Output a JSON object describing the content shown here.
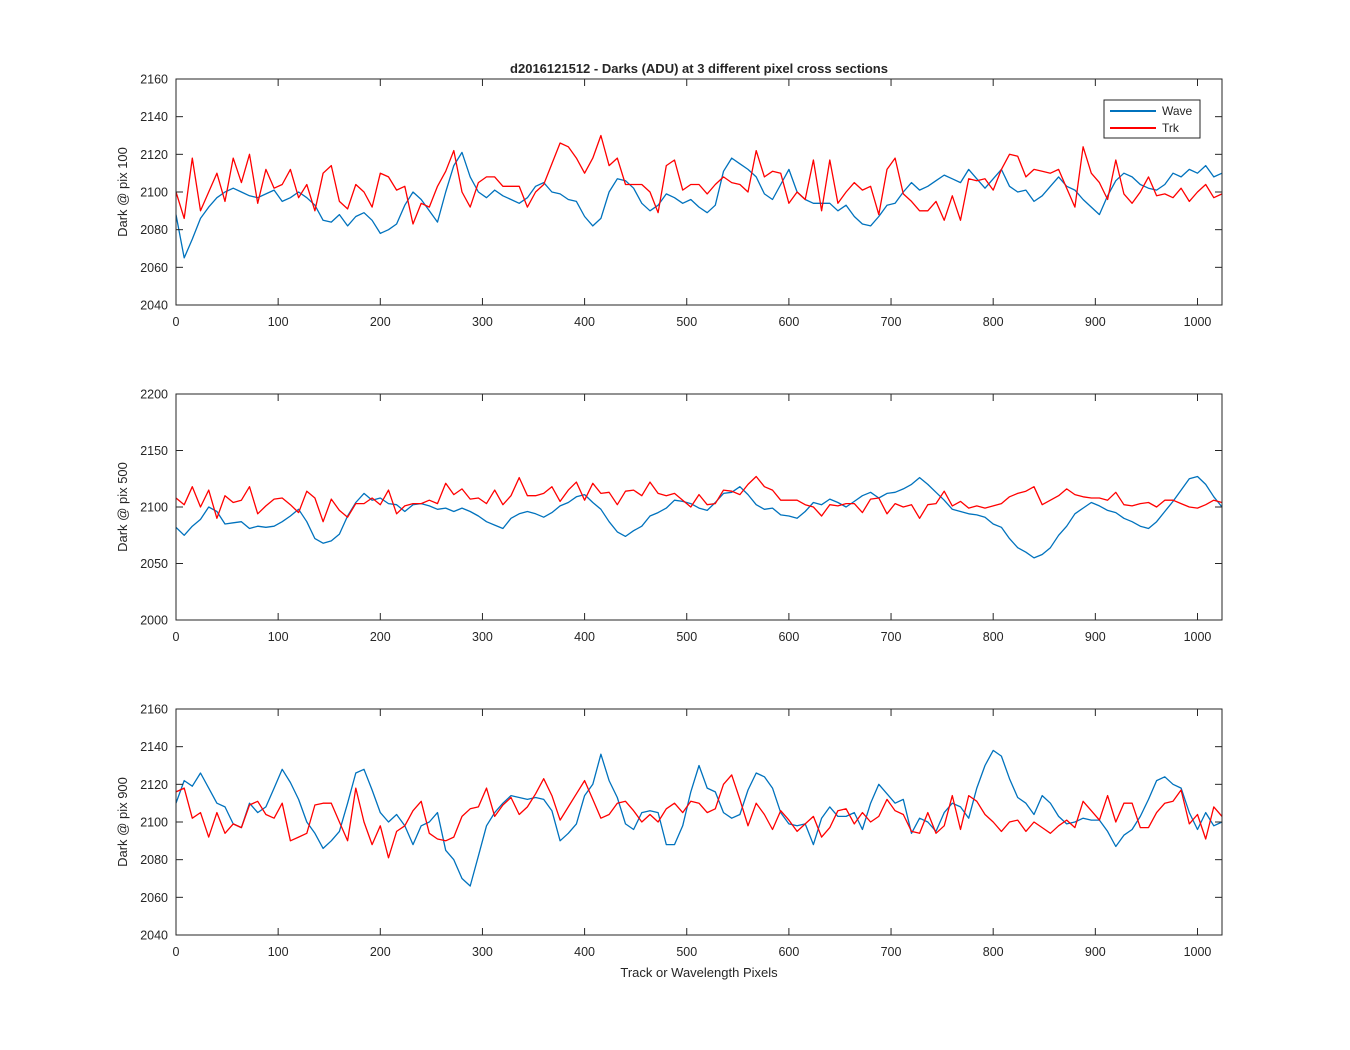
{
  "figure": {
    "title": "d2016121512 - Darks (ADU) at 3 different pixel cross sections",
    "xlabel": "Track or Wavelength Pixels"
  },
  "legend": {
    "placement": "top-right",
    "entries": [
      {
        "name": "Wave",
        "color": "#0072BD"
      },
      {
        "name": "Trk",
        "color": "#FF0000"
      }
    ]
  },
  "chart_data": [
    {
      "type": "line",
      "title": "d2016121512 - Darks (ADU) at 3 different pixel cross sections",
      "xlabel": "",
      "ylabel": "Dark @ pix 100",
      "xlim": [
        0,
        1024
      ],
      "ylim": [
        2040,
        2160
      ],
      "xticks": [
        0,
        100,
        200,
        300,
        400,
        500,
        600,
        700,
        800,
        900,
        1000
      ],
      "yticks": [
        2040,
        2060,
        2080,
        2100,
        2120,
        2140,
        2160
      ],
      "grid": false,
      "legend": "top-right",
      "x_step": 8,
      "series": [
        {
          "name": "Wave",
          "color": "#0072BD",
          "values": [
            2088,
            2065,
            2075,
            2086,
            2092,
            2097,
            2100,
            2102,
            2100,
            2098,
            2097,
            2099,
            2101,
            2095,
            2097,
            2100,
            2097,
            2093,
            2085,
            2084,
            2088,
            2082,
            2087,
            2089,
            2085,
            2078,
            2080,
            2083,
            2093,
            2100,
            2096,
            2090,
            2084,
            2100,
            2114,
            2121,
            2108,
            2100,
            2097,
            2101,
            2098,
            2096,
            2094,
            2097,
            2103,
            2105,
            2100,
            2099,
            2096,
            2095,
            2087,
            2082,
            2086,
            2100,
            2107,
            2106,
            2102,
            2094,
            2090,
            2093,
            2099,
            2097,
            2094,
            2096,
            2092,
            2089,
            2093,
            2111,
            2118,
            2115,
            2112,
            2108,
            2099,
            2096,
            2104,
            2112,
            2100,
            2096,
            2094,
            2094,
            2094,
            2090,
            2093,
            2087,
            2083,
            2082,
            2087,
            2093,
            2094,
            2100,
            2105,
            2101,
            2103,
            2106,
            2109,
            2107,
            2105,
            2112,
            2107,
            2102,
            2107,
            2112,
            2103,
            2100,
            2101,
            2095,
            2098,
            2103,
            2108,
            2103,
            2101,
            2096,
            2092,
            2088,
            2098,
            2106,
            2110,
            2108,
            2104,
            2102,
            2101,
            2104,
            2110,
            2108,
            2112,
            2110,
            2114,
            2108,
            2110
          ]
        },
        {
          "name": "Trk",
          "color": "#FF0000",
          "values": [
            2100,
            2086,
            2118,
            2090,
            2100,
            2110,
            2095,
            2118,
            2105,
            2120,
            2094,
            2112,
            2102,
            2104,
            2112,
            2097,
            2104,
            2090,
            2110,
            2114,
            2095,
            2091,
            2104,
            2100,
            2092,
            2110,
            2108,
            2101,
            2103,
            2083,
            2094,
            2092,
            2103,
            2111,
            2122,
            2100,
            2092,
            2105,
            2108,
            2108,
            2103,
            2103,
            2103,
            2092,
            2100,
            2104,
            2115,
            2126,
            2124,
            2118,
            2110,
            2118,
            2130,
            2114,
            2118,
            2104,
            2104,
            2104,
            2100,
            2089,
            2114,
            2117,
            2101,
            2104,
            2104,
            2099,
            2104,
            2108,
            2105,
            2104,
            2100,
            2122,
            2108,
            2111,
            2110,
            2094,
            2100,
            2096,
            2117,
            2090,
            2117,
            2094,
            2100,
            2105,
            2101,
            2103,
            2088,
            2112,
            2118,
            2099,
            2095,
            2090,
            2090,
            2095,
            2085,
            2098,
            2085,
            2107,
            2106,
            2107,
            2101,
            2112,
            2120,
            2119,
            2108,
            2112,
            2111,
            2110,
            2112,
            2102,
            2092,
            2124,
            2110,
            2105,
            2096,
            2117,
            2099,
            2094,
            2100,
            2108,
            2098,
            2099,
            2097,
            2102,
            2095,
            2100,
            2104,
            2097,
            2099
          ]
        }
      ]
    },
    {
      "type": "line",
      "xlabel": "",
      "ylabel": "Dark @ pix 500",
      "xlim": [
        0,
        1024
      ],
      "ylim": [
        2000,
        2200
      ],
      "xticks": [
        0,
        100,
        200,
        300,
        400,
        500,
        600,
        700,
        800,
        900,
        1000
      ],
      "yticks": [
        2000,
        2050,
        2100,
        2150,
        2200
      ],
      "grid": false,
      "series": [
        {
          "name": "Wave",
          "color": "#0072BD",
          "values": [
            2082,
            2075,
            2083,
            2089,
            2100,
            2096,
            2085,
            2086,
            2087,
            2081,
            2083,
            2082,
            2083,
            2087,
            2092,
            2098,
            2087,
            2072,
            2068,
            2070,
            2076,
            2092,
            2104,
            2112,
            2106,
            2108,
            2103,
            2102,
            2096,
            2102,
            2103,
            2101,
            2098,
            2099,
            2096,
            2099,
            2096,
            2092,
            2087,
            2084,
            2081,
            2090,
            2094,
            2096,
            2094,
            2091,
            2095,
            2101,
            2104,
            2109,
            2111,
            2104,
            2098,
            2087,
            2078,
            2074,
            2079,
            2083,
            2092,
            2095,
            2099,
            2106,
            2105,
            2103,
            2099,
            2097,
            2104,
            2112,
            2113,
            2118,
            2111,
            2102,
            2098,
            2099,
            2093,
            2092,
            2090,
            2096,
            2104,
            2102,
            2107,
            2104,
            2100,
            2105,
            2110,
            2113,
            2108,
            2112,
            2113,
            2116,
            2120,
            2126,
            2120,
            2113,
            2106,
            2098,
            2096,
            2094,
            2093,
            2091,
            2085,
            2082,
            2072,
            2064,
            2060,
            2055,
            2058,
            2064,
            2075,
            2083,
            2094,
            2099,
            2104,
            2101,
            2097,
            2095,
            2090,
            2087,
            2083,
            2081,
            2087,
            2096,
            2105,
            2115,
            2125,
            2127,
            2120,
            2109,
            2100
          ]
        },
        {
          "name": "Trk",
          "color": "#FF0000",
          "values": [
            2108,
            2102,
            2118,
            2100,
            2115,
            2090,
            2110,
            2104,
            2106,
            2118,
            2094,
            2101,
            2107,
            2108,
            2102,
            2095,
            2114,
            2108,
            2087,
            2107,
            2097,
            2091,
            2103,
            2103,
            2108,
            2102,
            2115,
            2094,
            2101,
            2103,
            2103,
            2106,
            2103,
            2121,
            2111,
            2116,
            2107,
            2108,
            2103,
            2115,
            2102,
            2110,
            2126,
            2110,
            2110,
            2112,
            2118,
            2105,
            2115,
            2122,
            2106,
            2121,
            2112,
            2113,
            2102,
            2114,
            2115,
            2110,
            2122,
            2112,
            2110,
            2112,
            2106,
            2100,
            2111,
            2102,
            2103,
            2115,
            2114,
            2111,
            2120,
            2127,
            2118,
            2115,
            2106,
            2106,
            2106,
            2102,
            2100,
            2092,
            2102,
            2101,
            2103,
            2103,
            2095,
            2107,
            2108,
            2094,
            2103,
            2100,
            2102,
            2090,
            2102,
            2103,
            2114,
            2101,
            2105,
            2099,
            2101,
            2099,
            2101,
            2103,
            2109,
            2112,
            2114,
            2118,
            2102,
            2106,
            2110,
            2116,
            2111,
            2109,
            2108,
            2108,
            2106,
            2113,
            2102,
            2101,
            2103,
            2104,
            2100,
            2106,
            2106,
            2103,
            2100,
            2099,
            2102,
            2106,
            2104
          ]
        }
      ]
    },
    {
      "type": "line",
      "xlabel": "Track or Wavelength Pixels",
      "ylabel": "Dark @ pix 900",
      "xlim": [
        0,
        1024
      ],
      "ylim": [
        2040,
        2160
      ],
      "xticks": [
        0,
        100,
        200,
        300,
        400,
        500,
        600,
        700,
        800,
        900,
        1000
      ],
      "yticks": [
        2040,
        2060,
        2080,
        2100,
        2120,
        2140,
        2160
      ],
      "grid": false,
      "series": [
        {
          "name": "Wave",
          "color": "#0072BD",
          "values": [
            2110,
            2122,
            2119,
            2126,
            2118,
            2110,
            2108,
            2099,
            2097,
            2110,
            2105,
            2108,
            2118,
            2128,
            2121,
            2112,
            2100,
            2094,
            2086,
            2090,
            2095,
            2110,
            2126,
            2128,
            2117,
            2105,
            2100,
            2104,
            2098,
            2088,
            2098,
            2100,
            2105,
            2085,
            2080,
            2070,
            2066,
            2082,
            2098,
            2105,
            2110,
            2114,
            2113,
            2112,
            2113,
            2112,
            2106,
            2090,
            2094,
            2099,
            2114,
            2120,
            2136,
            2122,
            2113,
            2099,
            2096,
            2105,
            2106,
            2105,
            2088,
            2088,
            2098,
            2116,
            2130,
            2118,
            2116,
            2105,
            2102,
            2104,
            2117,
            2126,
            2124,
            2118,
            2105,
            2099,
            2098,
            2099,
            2088,
            2102,
            2108,
            2103,
            2103,
            2105,
            2096,
            2110,
            2120,
            2115,
            2110,
            2112,
            2094,
            2102,
            2100,
            2095,
            2105,
            2110,
            2108,
            2102,
            2118,
            2130,
            2138,
            2135,
            2123,
            2113,
            2110,
            2104,
            2114,
            2110,
            2103,
            2099,
            2100,
            2102,
            2101,
            2101,
            2095,
            2087,
            2093,
            2096,
            2103,
            2112,
            2122,
            2124,
            2120,
            2118,
            2105,
            2096,
            2105,
            2098,
            2100
          ]
        },
        {
          "name": "Trk",
          "color": "#FF0000",
          "values": [
            2116,
            2118,
            2102,
            2105,
            2092,
            2105,
            2094,
            2099,
            2097,
            2109,
            2111,
            2104,
            2102,
            2110,
            2090,
            2092,
            2094,
            2109,
            2110,
            2110,
            2100,
            2090,
            2118,
            2100,
            2088,
            2098,
            2081,
            2095,
            2098,
            2106,
            2111,
            2094,
            2091,
            2090,
            2092,
            2103,
            2107,
            2108,
            2118,
            2103,
            2109,
            2113,
            2104,
            2108,
            2115,
            2123,
            2114,
            2101,
            2108,
            2115,
            2122,
            2112,
            2102,
            2104,
            2110,
            2111,
            2106,
            2100,
            2104,
            2100,
            2107,
            2110,
            2105,
            2111,
            2110,
            2105,
            2107,
            2120,
            2125,
            2112,
            2098,
            2110,
            2104,
            2096,
            2106,
            2101,
            2095,
            2099,
            2103,
            2092,
            2097,
            2106,
            2107,
            2099,
            2105,
            2100,
            2103,
            2112,
            2106,
            2104,
            2095,
            2094,
            2105,
            2094,
            2098,
            2114,
            2096,
            2114,
            2111,
            2104,
            2100,
            2095,
            2100,
            2101,
            2095,
            2100,
            2097,
            2094,
            2098,
            2101,
            2097,
            2111,
            2106,
            2101,
            2114,
            2100,
            2110,
            2110,
            2097,
            2097,
            2105,
            2110,
            2111,
            2117,
            2099,
            2104,
            2091,
            2108,
            2103
          ]
        }
      ]
    }
  ]
}
